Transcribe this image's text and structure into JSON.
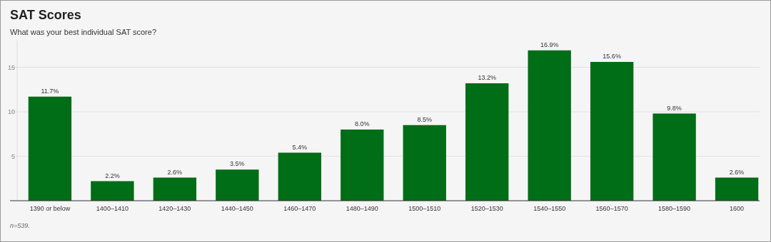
{
  "chart_data": {
    "type": "bar",
    "title": "SAT Scores",
    "subtitle": "What was your best individual SAT score?",
    "categories": [
      "1390 or below",
      "1400–1410",
      "1420–1430",
      "1440–1450",
      "1460–1470",
      "1480–1490",
      "1500–1510",
      "1520–1530",
      "1540–1550",
      "1560–1570",
      "1580–1590",
      "1600"
    ],
    "values": [
      11.7,
      2.2,
      2.6,
      3.5,
      5.4,
      8.0,
      8.5,
      13.2,
      16.9,
      15.6,
      9.8,
      2.6
    ],
    "value_labels": [
      "11.7%",
      "2.2%",
      "2.6%",
      "3.5%",
      "5.4%",
      "8.0%",
      "8.5%",
      "13.2%",
      "16.9%",
      "15.6%",
      "9.8%",
      "2.6%"
    ],
    "color": "#006d17",
    "ylim": [
      0,
      18
    ],
    "yticks": [
      5,
      10,
      15
    ],
    "grid": "y",
    "annotations": [
      "n=539."
    ]
  }
}
